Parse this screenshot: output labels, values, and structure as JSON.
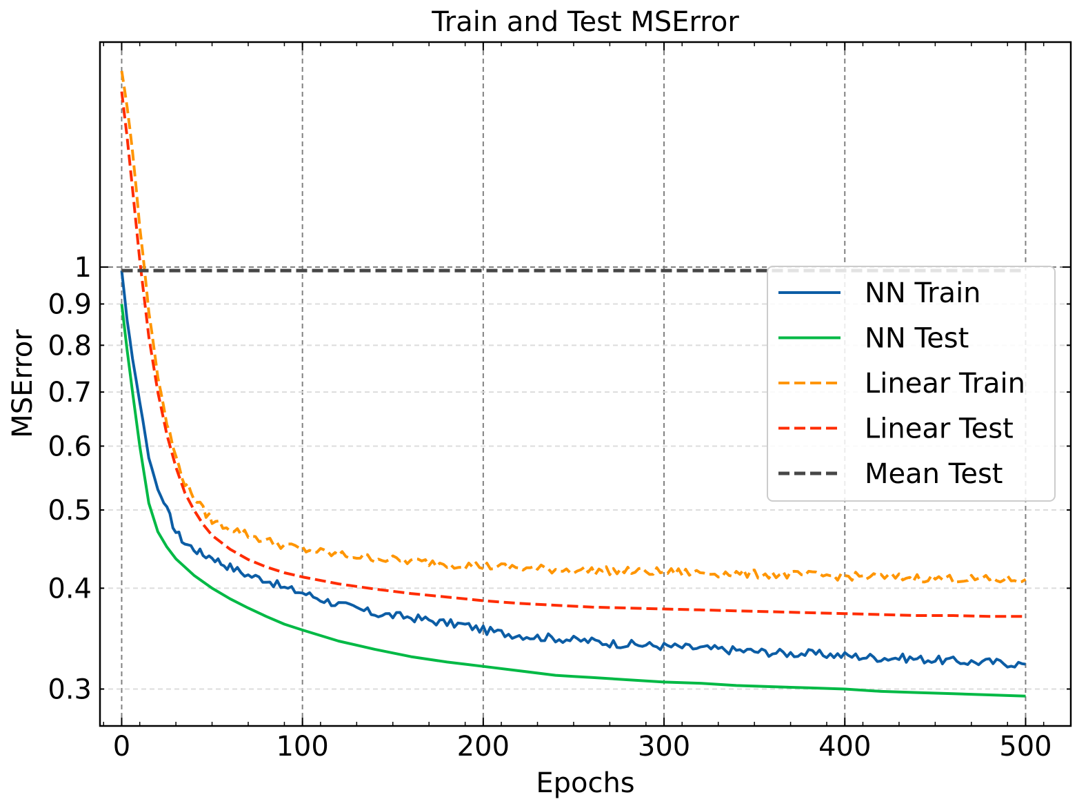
{
  "chart_data": {
    "type": "line",
    "title": "Train and Test MSError",
    "xlabel": "Epochs",
    "ylabel": "MSError",
    "xlim": [
      -12,
      525
    ],
    "ylim": [
      0.27,
      1.9
    ],
    "yscale": "log",
    "grid": true,
    "legend_position": "center-right",
    "x_ticks": [
      0,
      100,
      200,
      300,
      400,
      500
    ],
    "x_tick_labels": [
      "0",
      "100",
      "200",
      "300",
      "400",
      "500"
    ],
    "y_ticks": [
      0.3,
      0.4,
      0.5,
      0.6,
      0.7,
      0.8,
      0.9,
      1.0
    ],
    "y_tick_labels": [
      "0.3",
      "0.4",
      "0.5",
      "0.6",
      "0.7",
      "0.8",
      "0.9",
      "1"
    ],
    "series": [
      {
        "name": "NN Train",
        "color": "#0C5DA5",
        "dash": "solid",
        "x": [
          0,
          3,
          6,
          10,
          15,
          20,
          25,
          30,
          35,
          40,
          45,
          50,
          55,
          60,
          70,
          80,
          90,
          100,
          110,
          120,
          130,
          140,
          150,
          160,
          170,
          180,
          190,
          200,
          210,
          220,
          230,
          240,
          250,
          260,
          270,
          280,
          290,
          300,
          310,
          320,
          330,
          340,
          350,
          360,
          370,
          380,
          390,
          400,
          410,
          420,
          430,
          440,
          450,
          460,
          470,
          480,
          490,
          500
        ],
        "y": [
          0.99,
          0.86,
          0.77,
          0.68,
          0.58,
          0.53,
          0.5,
          0.47,
          0.455,
          0.448,
          0.44,
          0.438,
          0.43,
          0.425,
          0.415,
          0.41,
          0.4,
          0.395,
          0.388,
          0.382,
          0.377,
          0.372,
          0.37,
          0.368,
          0.365,
          0.362,
          0.36,
          0.355,
          0.352,
          0.35,
          0.348,
          0.347,
          0.345,
          0.344,
          0.342,
          0.341,
          0.34,
          0.339,
          0.338,
          0.337,
          0.336,
          0.335,
          0.334,
          0.333,
          0.332,
          0.332,
          0.331,
          0.33,
          0.329,
          0.328,
          0.328,
          0.327,
          0.326,
          0.325,
          0.324,
          0.324,
          0.323,
          0.322
        ]
      },
      {
        "name": "NN Test",
        "color": "#00B945",
        "dash": "solid",
        "x": [
          0,
          3,
          6,
          10,
          15,
          20,
          25,
          30,
          40,
          50,
          60,
          70,
          80,
          90,
          100,
          120,
          140,
          160,
          180,
          190,
          200,
          220,
          240,
          250,
          260,
          280,
          300,
          320,
          340,
          360,
          380,
          400,
          420,
          440,
          460,
          480,
          500
        ],
        "y": [
          0.9,
          0.79,
          0.7,
          0.6,
          0.51,
          0.47,
          0.45,
          0.435,
          0.415,
          0.4,
          0.388,
          0.378,
          0.369,
          0.361,
          0.355,
          0.344,
          0.336,
          0.329,
          0.324,
          0.322,
          0.32,
          0.316,
          0.312,
          0.311,
          0.31,
          0.308,
          0.306,
          0.305,
          0.303,
          0.302,
          0.301,
          0.3,
          0.298,
          0.297,
          0.296,
          0.295,
          0.294
        ]
      },
      {
        "name": "Linear Train",
        "color": "#FF9500",
        "dash": "dashed",
        "x": [
          0,
          3,
          6,
          10,
          15,
          20,
          25,
          30,
          35,
          40,
          45,
          50,
          60,
          70,
          80,
          90,
          100,
          120,
          140,
          160,
          180,
          200,
          220,
          240,
          260,
          280,
          300,
          320,
          340,
          360,
          380,
          400,
          420,
          440,
          460,
          480,
          500
        ],
        "y": [
          1.75,
          1.58,
          1.39,
          1.12,
          0.88,
          0.73,
          0.64,
          0.58,
          0.54,
          0.52,
          0.5,
          0.485,
          0.475,
          0.466,
          0.458,
          0.452,
          0.447,
          0.44,
          0.436,
          0.432,
          0.429,
          0.426,
          0.424,
          0.422,
          0.421,
          0.42,
          0.419,
          0.418,
          0.417,
          0.416,
          0.415,
          0.414,
          0.413,
          0.412,
          0.411,
          0.41,
          0.41
        ]
      },
      {
        "name": "Linear Test",
        "color": "#FF2C00",
        "dash": "dashed",
        "x": [
          0,
          3,
          6,
          10,
          15,
          20,
          25,
          30,
          35,
          40,
          45,
          50,
          60,
          70,
          80,
          90,
          100,
          120,
          140,
          160,
          180,
          200,
          220,
          240,
          260,
          280,
          300,
          320,
          340,
          360,
          380,
          400,
          420,
          440,
          460,
          480,
          500
        ],
        "y": [
          1.65,
          1.45,
          1.25,
          1.02,
          0.82,
          0.7,
          0.62,
          0.565,
          0.525,
          0.5,
          0.48,
          0.465,
          0.447,
          0.434,
          0.425,
          0.418,
          0.413,
          0.405,
          0.399,
          0.394,
          0.39,
          0.386,
          0.383,
          0.381,
          0.379,
          0.378,
          0.377,
          0.376,
          0.375,
          0.374,
          0.373,
          0.372,
          0.371,
          0.37,
          0.37,
          0.369,
          0.369
        ]
      },
      {
        "name": "Mean Test",
        "color": "#474747",
        "dash": "dashed",
        "x": [
          0,
          500
        ],
        "y": [
          0.99,
          0.99
        ]
      }
    ]
  }
}
